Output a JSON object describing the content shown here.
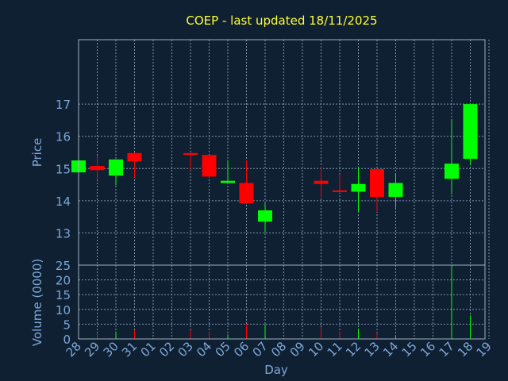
{
  "chart_data": {
    "type": "candlestick",
    "title": "COEP - last updated 18/11/2025",
    "xlabel": "Day",
    "ylabel_price": "Price",
    "ylabel_volume": "Volume (0000)",
    "x_ticks": [
      "28",
      "29",
      "30",
      "31",
      "01",
      "02",
      "03",
      "04",
      "05",
      "06",
      "07",
      "08",
      "09",
      "10",
      "11",
      "12",
      "13",
      "14",
      "15",
      "16",
      "17",
      "18",
      "19"
    ],
    "price_ylim": [
      12.0,
      19.0
    ],
    "price_yticks": [
      13,
      14,
      15,
      16,
      17
    ],
    "volume_ylim": [
      0,
      25
    ],
    "volume_yticks": [
      0,
      5,
      10,
      15,
      20,
      25
    ],
    "grid": true,
    "colors": {
      "up": "#00ff00",
      "down": "#ff0000",
      "background": "#0f2033",
      "title": "#ffff33",
      "axis_text": "#7ea8d8"
    },
    "candles": [
      {
        "day": 0,
        "open": 14.88,
        "high": 15.25,
        "low": 14.88,
        "close": 15.25,
        "volume": 0.5
      },
      {
        "day": 1,
        "open": 15.08,
        "high": 15.4,
        "low": 14.65,
        "close": 14.95,
        "volume": 2.0
      },
      {
        "day": 2,
        "open": 14.78,
        "high": 15.28,
        "low": 14.48,
        "close": 15.28,
        "volume": 2.5
      },
      {
        "day": 3,
        "open": 15.48,
        "high": 15.5,
        "low": 14.72,
        "close": 15.22,
        "volume": 3.0
      },
      {
        "day": 6,
        "open": 15.48,
        "high": 15.48,
        "low": 14.95,
        "close": 15.42,
        "volume": 3.0
      },
      {
        "day": 7,
        "open": 15.42,
        "high": 15.42,
        "low": 14.72,
        "close": 14.75,
        "volume": 2.5
      },
      {
        "day": 8,
        "open": 14.55,
        "high": 15.25,
        "low": 14.52,
        "close": 14.62,
        "volume": 1.5
      },
      {
        "day": 9,
        "open": 14.55,
        "high": 15.25,
        "low": 13.9,
        "close": 13.92,
        "volume": 5.0
      },
      {
        "day": 10,
        "open": 13.35,
        "high": 13.92,
        "low": 13.0,
        "close": 13.7,
        "volume": 5.0
      },
      {
        "day": 13,
        "open": 14.62,
        "high": 15.05,
        "low": 14.1,
        "close": 14.52,
        "volume": 4.0
      },
      {
        "day": 14,
        "open": 14.32,
        "high": 14.82,
        "low": 14.25,
        "close": 14.28,
        "volume": 2.5
      },
      {
        "day": 15,
        "open": 14.28,
        "high": 15.05,
        "low": 13.65,
        "close": 14.52,
        "volume": 3.5
      },
      {
        "day": 16,
        "open": 14.98,
        "high": 15.0,
        "low": 13.65,
        "close": 14.12,
        "volume": 2.0
      },
      {
        "day": 17,
        "open": 14.12,
        "high": 14.85,
        "low": 13.78,
        "close": 14.55,
        "volume": 1.0
      },
      {
        "day": 20,
        "open": 14.68,
        "high": 16.5,
        "low": 14.2,
        "close": 15.15,
        "volume": 25.0
      },
      {
        "day": 21,
        "open": 15.3,
        "high": 17.0,
        "low": 15.1,
        "close": 17.0,
        "volume": 8.0
      }
    ]
  }
}
